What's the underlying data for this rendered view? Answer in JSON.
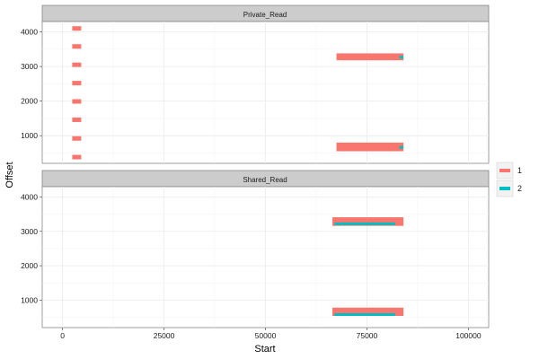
{
  "chart_data": {
    "type": "scatter",
    "xlabel": "Start",
    "ylabel": "Offset",
    "x_ticks": [
      0,
      25000,
      50000,
      75000,
      100000
    ],
    "x_tick_labels": [
      "0",
      "25000",
      "50000",
      "75000",
      "100000"
    ],
    "y_ticks": [
      1000,
      2000,
      3000,
      4000
    ],
    "y_tick_labels": [
      "1000",
      "2000",
      "3000",
      "4000"
    ],
    "xlim": [
      -5000,
      105000
    ],
    "ylim": [
      200,
      4300
    ],
    "grid": true,
    "legend_position": "right",
    "series": [
      {
        "name": "1",
        "color": "#F8766D"
      },
      {
        "name": "2",
        "color": "#00BFC4"
      }
    ],
    "facets": [
      {
        "label": "Private_Read",
        "points": [
          {
            "x": 3500,
            "y": 380,
            "s": "1"
          },
          {
            "x": 3500,
            "y": 920,
            "s": "1"
          },
          {
            "x": 3500,
            "y": 1460,
            "s": "1"
          },
          {
            "x": 3500,
            "y": 1990,
            "s": "1"
          },
          {
            "x": 3500,
            "y": 2520,
            "s": "1"
          },
          {
            "x": 3500,
            "y": 3050,
            "s": "1"
          },
          {
            "x": 3500,
            "y": 3580,
            "s": "1"
          },
          {
            "x": 3500,
            "y": 4100,
            "s": "1"
          }
        ],
        "bands": [
          {
            "x0": 67500,
            "x1": 84000,
            "y0": 550,
            "y1": 800,
            "s": "1"
          },
          {
            "x0": 67500,
            "x1": 84000,
            "y0": 3180,
            "y1": 3380,
            "s": "1"
          }
        ],
        "segments": [
          {
            "x0": 83000,
            "x1": 84000,
            "y": 660,
            "s": "2"
          },
          {
            "x0": 83000,
            "x1": 84000,
            "y": 3270,
            "s": "2"
          }
        ]
      },
      {
        "label": "Shared_Read",
        "points": [],
        "bands": [
          {
            "x0": 66500,
            "x1": 84000,
            "y0": 540,
            "y1": 780,
            "s": "1"
          },
          {
            "x0": 66500,
            "x1": 84000,
            "y0": 3160,
            "y1": 3410,
            "s": "1"
          }
        ],
        "segments": [
          {
            "x0": 67000,
            "x1": 82000,
            "y": 580,
            "s": "2"
          },
          {
            "x0": 67000,
            "x1": 82000,
            "y": 3220,
            "s": "2"
          }
        ]
      }
    ]
  }
}
